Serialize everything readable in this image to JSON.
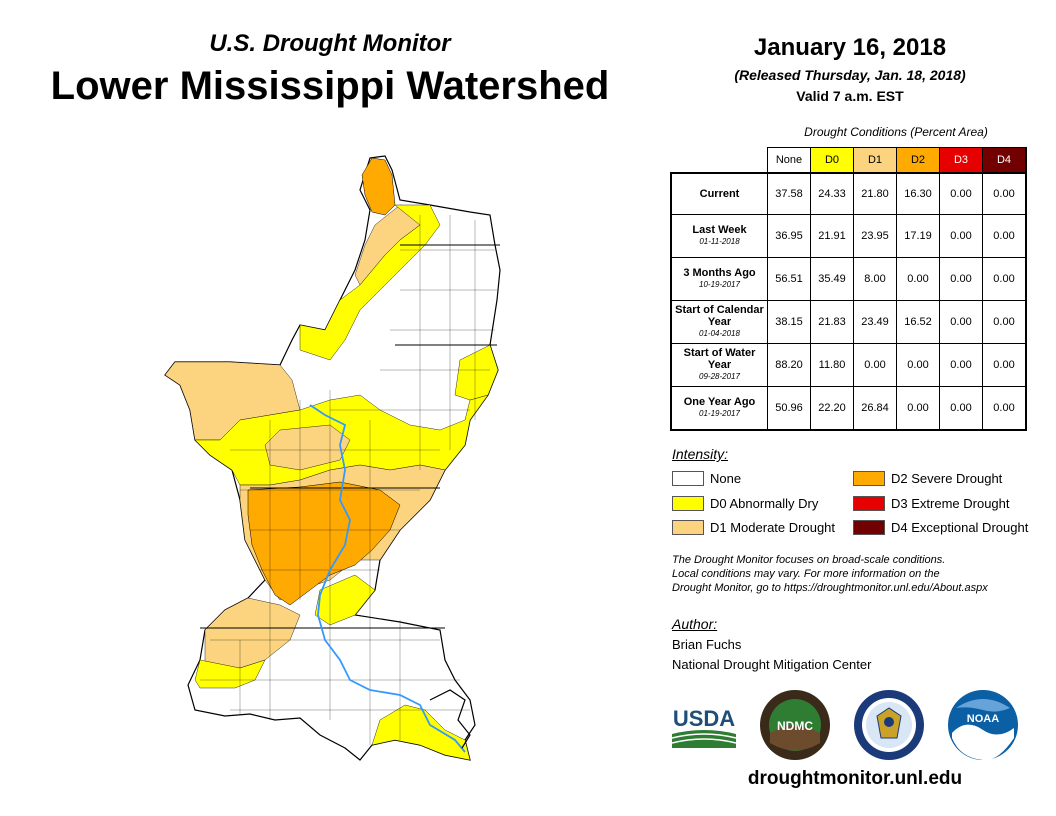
{
  "header": {
    "subtitle": "U.S. Drought Monitor",
    "title": "Lower Mississippi Watershed",
    "date": "January 16, 2018",
    "released": "(Released Thursday, Jan. 18, 2018)",
    "valid": "Valid 7 a.m. EST"
  },
  "table": {
    "caption": "Drought Conditions (Percent Area)",
    "columns": [
      "None",
      "D0",
      "D1",
      "D2",
      "D3",
      "D4"
    ],
    "rows": [
      {
        "label": "Current",
        "date": "",
        "values": [
          "37.58",
          "24.33",
          "21.80",
          "16.30",
          "0.00",
          "0.00"
        ]
      },
      {
        "label": "Last Week",
        "date": "01-11-2018",
        "values": [
          "36.95",
          "21.91",
          "23.95",
          "17.19",
          "0.00",
          "0.00"
        ]
      },
      {
        "label": "3 Months Ago",
        "date": "10-19-2017",
        "values": [
          "56.51",
          "35.49",
          "8.00",
          "0.00",
          "0.00",
          "0.00"
        ]
      },
      {
        "label": "Start of Calendar Year",
        "date": "01-04-2018",
        "values": [
          "38.15",
          "21.83",
          "23.49",
          "16.52",
          "0.00",
          "0.00"
        ]
      },
      {
        "label": "Start of Water Year",
        "date": "09-28-2017",
        "values": [
          "88.20",
          "11.80",
          "0.00",
          "0.00",
          "0.00",
          "0.00"
        ]
      },
      {
        "label": "One Year Ago",
        "date": "01-19-2017",
        "values": [
          "50.96",
          "22.20",
          "26.84",
          "0.00",
          "0.00",
          "0.00"
        ]
      }
    ]
  },
  "legend": {
    "title": "Intensity:",
    "items": [
      {
        "label": "None",
        "color": "#ffffff"
      },
      {
        "label": "D0 Abnormally Dry",
        "color": "#ffff00"
      },
      {
        "label": "D1 Moderate Drought",
        "color": "#fcd37f"
      },
      {
        "label": "D2 Severe Drought",
        "color": "#ffaa00"
      },
      {
        "label": "D3 Extreme Drought",
        "color": "#e60000"
      },
      {
        "label": "D4 Exceptional Drought",
        "color": "#730000"
      }
    ]
  },
  "note": {
    "line1": "The Drought Monitor focuses on broad-scale conditions.",
    "line2": "Local conditions may vary. For more information on the",
    "line3": "Drought Monitor, go to https://droughtmonitor.unl.edu/About.aspx"
  },
  "author": {
    "label": "Author:",
    "name": "Brian Fuchs",
    "org": "National Drought Mitigation Center"
  },
  "logos": {
    "usda": "USDA",
    "ndmc": "NDMC",
    "noaa": "NOAA"
  },
  "website": "droughtmonitor.unl.edu"
}
